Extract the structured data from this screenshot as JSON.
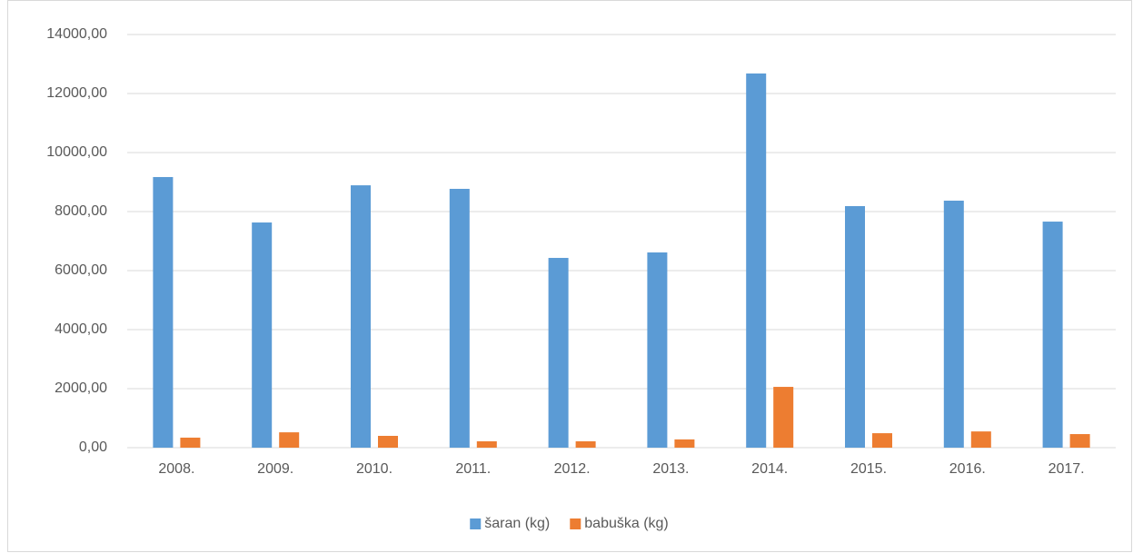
{
  "chart_data": {
    "type": "bar",
    "categories": [
      "2008.",
      "2009.",
      "2010.",
      "2011.",
      "2012.",
      "2013.",
      "2014.",
      "2015.",
      "2016.",
      "2017."
    ],
    "series": [
      {
        "name": "šaran (kg)",
        "color": "#5b9bd5",
        "values": [
          9170,
          7630,
          8890,
          8770,
          6430,
          6615,
          12680,
          8185,
          8370,
          7660
        ]
      },
      {
        "name": "babuška (kg)",
        "color": "#ed7d31",
        "values": [
          340,
          520,
          400,
          215,
          215,
          280,
          2060,
          490,
          550,
          460
        ]
      }
    ],
    "ylim": [
      0,
      14000
    ],
    "yticks": [
      {
        "value": 0,
        "label": "0,00"
      },
      {
        "value": 2000,
        "label": "2000,00"
      },
      {
        "value": 4000,
        "label": "4000,00"
      },
      {
        "value": 6000,
        "label": "6000,00"
      },
      {
        "value": 8000,
        "label": "8000,00"
      },
      {
        "value": 10000,
        "label": "10000,00"
      },
      {
        "value": 12000,
        "label": "12000,00"
      },
      {
        "value": 14000,
        "label": "14000,00"
      }
    ],
    "grid": true,
    "legend": "bottom"
  }
}
